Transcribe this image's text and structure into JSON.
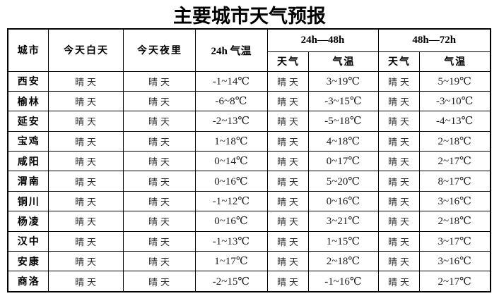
{
  "title": "主要城市天气预报",
  "colors": {
    "background": "#ffffff",
    "border": "#000000",
    "text": "#000000"
  },
  "table": {
    "headers": {
      "city": "城市",
      "today_day": "今天白天",
      "today_night": "今天夜里",
      "temp_24h": "24h 气温",
      "group_24_48": "24h—48h",
      "group_48_72": "48h—72h",
      "weather": "天气",
      "temp": "气温"
    },
    "rows": [
      {
        "city": "西安",
        "day": "晴天",
        "night": "晴天",
        "t24": "-1~14℃",
        "w48": "晴天",
        "t48": "3~19℃",
        "w72": "晴天",
        "t72": "5~19℃"
      },
      {
        "city": "榆林",
        "day": "晴天",
        "night": "晴天",
        "t24": "-6~8℃",
        "w48": "晴天",
        "t48": "-3~15℃",
        "w72": "晴天",
        "t72": "-3~10℃"
      },
      {
        "city": "延安",
        "day": "晴天",
        "night": "晴天",
        "t24": "-2~13℃",
        "w48": "晴天",
        "t48": "-5~18℃",
        "w72": "晴天",
        "t72": "-4~13℃"
      },
      {
        "city": "宝鸡",
        "day": "晴天",
        "night": "晴天",
        "t24": "1~18℃",
        "w48": "晴天",
        "t48": "4~18℃",
        "w72": "晴天",
        "t72": "2~18℃"
      },
      {
        "city": "咸阳",
        "day": "晴天",
        "night": "晴天",
        "t24": "0~14℃",
        "w48": "晴天",
        "t48": "0~17℃",
        "w72": "晴天",
        "t72": "2~17℃"
      },
      {
        "city": "渭南",
        "day": "晴天",
        "night": "晴天",
        "t24": "0~16℃",
        "w48": "晴天",
        "t48": "5~20℃",
        "w72": "晴天",
        "t72": "8~17℃"
      },
      {
        "city": "铜川",
        "day": "晴天",
        "night": "晴天",
        "t24": "-1~12℃",
        "w48": "晴天",
        "t48": "0~16℃",
        "w72": "晴天",
        "t72": "3~16℃"
      },
      {
        "city": "杨凌",
        "day": "晴天",
        "night": "晴天",
        "t24": "0~16℃",
        "w48": "晴天",
        "t48": "3~21℃",
        "w72": "晴天",
        "t72": "2~18℃"
      },
      {
        "city": "汉中",
        "day": "晴天",
        "night": "晴天",
        "t24": "-1~13℃",
        "w48": "晴天",
        "t48": "1~15℃",
        "w72": "晴天",
        "t72": "3~17℃"
      },
      {
        "city": "安康",
        "day": "晴天",
        "night": "晴天",
        "t24": "1~17℃",
        "w48": "晴天",
        "t48": "2~18℃",
        "w72": "晴天",
        "t72": "3~16℃"
      },
      {
        "city": "商洛",
        "day": "晴天",
        "night": "晴天",
        "t24": "-2~15℃",
        "w48": "晴天",
        "t48": "-1~16℃",
        "w72": "晴天",
        "t72": "2~17℃"
      }
    ]
  }
}
